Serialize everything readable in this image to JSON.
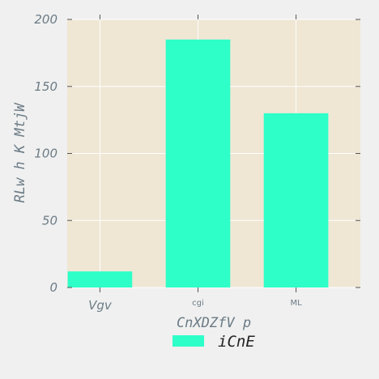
{
  "chart_data": {
    "type": "bar",
    "categories": [
      "Vgv",
      "cgi",
      "ML"
    ],
    "series": [
      {
        "name": "iCnE",
        "values": [
          12,
          185,
          130
        ]
      }
    ],
    "xlabel": "CnXDZfV p",
    "ylabel": "RLw h K  MtjW",
    "ylim": [
      0,
      200
    ],
    "yticks": [
      0,
      50,
      100,
      150,
      200
    ],
    "grid": true,
    "legend": "bottom-center",
    "colors": {
      "bar": "#2effc8",
      "plot_bg": "#efe6d4",
      "grid": "#ffffff",
      "text": "#6b7b85"
    }
  }
}
